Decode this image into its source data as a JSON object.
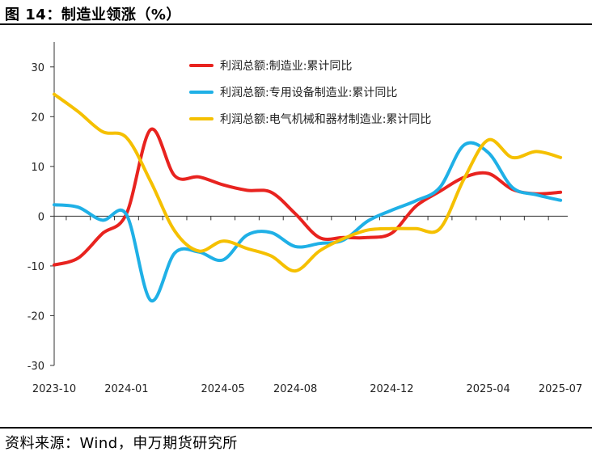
{
  "title": "图 14：制造业领涨（%）",
  "source": "资料来源：Wind，申万期货研究所",
  "chart_data": {
    "type": "line",
    "title": "图 14：制造业领涨（%）",
    "xlabel": "",
    "ylabel": "",
    "x_tick_labels": [
      "2023-10",
      "2024-01",
      "2024-05",
      "2024-08",
      "2024-12",
      "2025-04",
      "2025-07"
    ],
    "y_ticks": [
      -30,
      -20,
      -10,
      0,
      10,
      20,
      30
    ],
    "ylim": [
      -30,
      35
    ],
    "grid": false,
    "legend_position": "top-center",
    "series": [
      {
        "name": "利润总额:制造业:累计同比",
        "color": "#e8231f",
        "x": [
          "2023-10",
          "2023-11",
          "2023-12",
          "2024-01",
          "2024-02",
          "2024-03",
          "2024-04",
          "2024-05",
          "2024-06",
          "2024-07",
          "2024-08",
          "2024-09",
          "2024-10",
          "2024-11",
          "2024-12",
          "2025-01",
          "2025-02",
          "2025-03",
          "2025-04",
          "2025-05",
          "2025-06",
          "2025-07"
        ],
        "values": [
          -9.8,
          -8.4,
          -3.5,
          0.5,
          17.4,
          8.1,
          7.9,
          6.3,
          5.2,
          4.8,
          0.5,
          -4.3,
          -4.3,
          -4.3,
          -3.4,
          2.0,
          5.0,
          7.8,
          8.6,
          5.4,
          4.5,
          4.8
        ]
      },
      {
        "name": "利润总额:专用设备制造业:累计同比",
        "color": "#1fb0e6",
        "x": [
          "2023-10",
          "2023-11",
          "2023-12",
          "2024-01",
          "2024-02",
          "2024-03",
          "2024-04",
          "2024-05",
          "2024-06",
          "2024-07",
          "2024-08",
          "2024-09",
          "2024-10",
          "2024-11",
          "2024-12",
          "2025-01",
          "2025-02",
          "2025-03",
          "2025-04",
          "2025-05",
          "2025-06",
          "2025-07"
        ],
        "values": [
          2.3,
          1.8,
          -0.8,
          0.3,
          -16.9,
          -7.4,
          -7.2,
          -8.8,
          -3.8,
          -3.3,
          -6.1,
          -5.5,
          -4.8,
          -1.0,
          1.2,
          3.1,
          5.8,
          14.3,
          12.8,
          5.8,
          4.3,
          3.2
        ]
      },
      {
        "name": "利润总额:电气机械和器材制造业:累计同比",
        "color": "#f5c000",
        "x": [
          "2023-10",
          "2023-11",
          "2023-12",
          "2024-01",
          "2024-02",
          "2024-03",
          "2024-04",
          "2024-05",
          "2024-06",
          "2024-07",
          "2024-08",
          "2024-09",
          "2024-10",
          "2024-11",
          "2024-12",
          "2025-01",
          "2025-02",
          "2025-03",
          "2025-04",
          "2025-05",
          "2025-06",
          "2025-07"
        ],
        "values": [
          24.5,
          21.0,
          17.0,
          15.8,
          7.0,
          -3.0,
          -7.0,
          -5.0,
          -6.5,
          -8.0,
          -11.0,
          -7.0,
          -4.5,
          -2.8,
          -2.5,
          -2.5,
          -2.5,
          7.5,
          15.3,
          11.8,
          13.0,
          11.8
        ]
      }
    ]
  }
}
